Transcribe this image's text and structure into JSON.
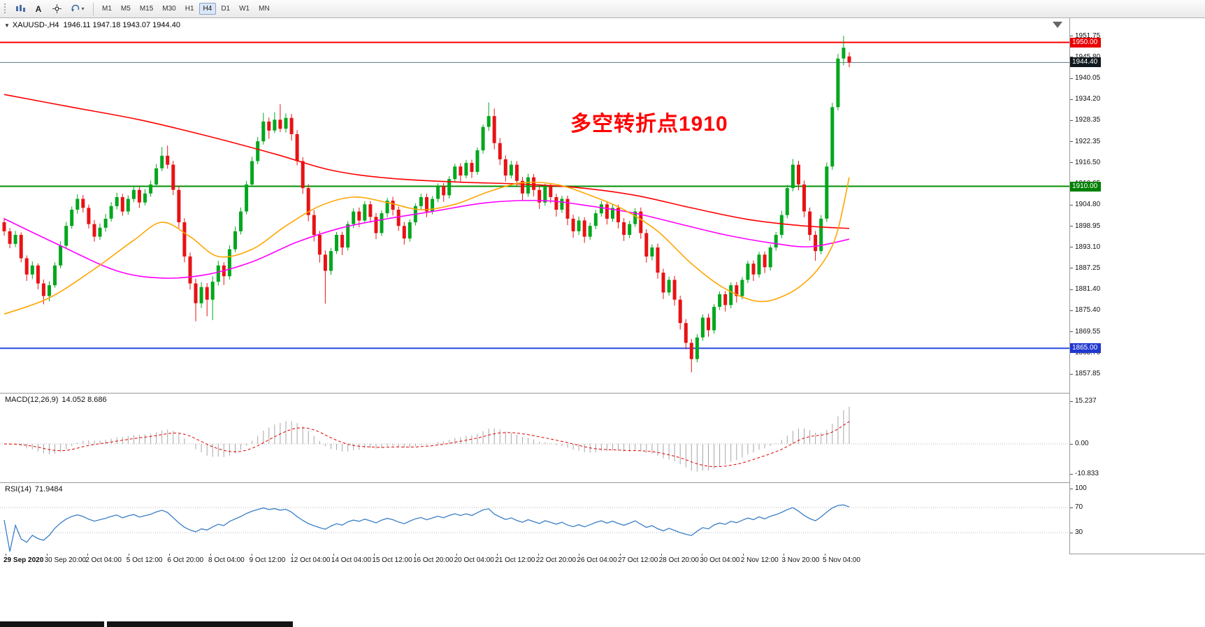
{
  "toolbar": {
    "text_tool_glyph": "A",
    "tools": [
      "pointer-icon",
      "text-tool-icon",
      "crosshair-icon",
      "cycle-icon"
    ],
    "timeframes": [
      "M1",
      "M5",
      "M15",
      "M30",
      "H1",
      "H4",
      "D1",
      "W1",
      "MN"
    ],
    "active_timeframe": "H4"
  },
  "chart": {
    "symbol": "XAUUSD-,H4",
    "ohlc_text": "1946.11 1947.18 1943.07 1944.40",
    "annotation": {
      "text": "多空转折点1910",
      "color": "#FF0000"
    },
    "levels": [
      {
        "value": 1950.0,
        "label": "1950.00",
        "color": "#FF0000",
        "line_color": "#FF0000",
        "width": 2,
        "label_bg": "#E80000"
      },
      {
        "value": 1944.4,
        "label": "1944.40",
        "color": "#5C7A8A",
        "line_color": "#5C7A8A",
        "width": 1,
        "label_bg": "#10191F"
      },
      {
        "value": 1910.0,
        "label": "1910.00",
        "color": "#009000",
        "line_color": "#009000",
        "width": 2,
        "label_bg": "#008000"
      },
      {
        "value": 1865.0,
        "label": "1865.00",
        "color": "#2B4BE0",
        "line_color": "#2B4BE0",
        "width": 2,
        "label_bg": "#2038CF"
      }
    ],
    "price_ticks": [
      "1951.75",
      "1945.80",
      "1940.05",
      "1934.20",
      "1928.35",
      "1922.35",
      "1916.50",
      "1910.65",
      "1904.80",
      "1898.95",
      "1893.10",
      "1887.25",
      "1881.40",
      "1875.40",
      "1869.55",
      "1863.70",
      "1857.85"
    ]
  },
  "chart_data": {
    "type": "candlestick",
    "symbol": "XAUUSD-",
    "timeframe": "H4",
    "colors": {
      "up": "#00A71D",
      "down": "#E81214"
    },
    "candles": [
      [
        1900.0,
        1901.2,
        1896.3,
        1897.5
      ],
      [
        1897.5,
        1898.4,
        1892.8,
        1894.0
      ],
      [
        1894.0,
        1897.6,
        1893.1,
        1896.5
      ],
      [
        1896.5,
        1897.2,
        1888.9,
        1890.0
      ],
      [
        1890.0,
        1890.8,
        1883.7,
        1885.5
      ],
      [
        1885.5,
        1889.1,
        1884.2,
        1888.0
      ],
      [
        1888.0,
        1888.6,
        1881.4,
        1883.0
      ],
      [
        1883.0,
        1884.1,
        1877.2,
        1879.5
      ],
      [
        1879.5,
        1883.6,
        1878.0,
        1882.5
      ],
      [
        1882.5,
        1888.9,
        1881.8,
        1888.0
      ],
      [
        1888.0,
        1894.7,
        1887.2,
        1893.5
      ],
      [
        1893.5,
        1900.1,
        1892.6,
        1899.0
      ],
      [
        1899.0,
        1904.4,
        1898.2,
        1903.5
      ],
      [
        1903.5,
        1907.8,
        1902.4,
        1906.5
      ],
      [
        1906.5,
        1907.6,
        1902.7,
        1904.0
      ],
      [
        1904.0,
        1904.9,
        1898.3,
        1899.5
      ],
      [
        1899.5,
        1900.6,
        1894.6,
        1896.0
      ],
      [
        1896.0,
        1899.7,
        1895.1,
        1898.5
      ],
      [
        1898.5,
        1902.3,
        1897.4,
        1901.0
      ],
      [
        1901.0,
        1905.6,
        1900.2,
        1904.5
      ],
      [
        1904.5,
        1908.2,
        1903.6,
        1907.0
      ],
      [
        1907.0,
        1907.9,
        1901.8,
        1903.0
      ],
      [
        1903.0,
        1907.5,
        1902.1,
        1906.5
      ],
      [
        1906.5,
        1910.1,
        1905.6,
        1909.0
      ],
      [
        1909.0,
        1909.8,
        1904.0,
        1905.5
      ],
      [
        1905.5,
        1909.2,
        1904.7,
        1908.0
      ],
      [
        1908.0,
        1911.6,
        1907.1,
        1910.5
      ],
      [
        1910.5,
        1916.2,
        1909.8,
        1915.0
      ],
      [
        1915.0,
        1920.9,
        1914.2,
        1918.5
      ],
      [
        1918.5,
        1921.3,
        1914.9,
        1916.0
      ],
      [
        1916.0,
        1917.1,
        1907.6,
        1909.0
      ],
      [
        1909.0,
        1910.2,
        1898.4,
        1900.0
      ],
      [
        1900.0,
        1901.1,
        1888.9,
        1890.5
      ],
      [
        1890.5,
        1891.6,
        1881.3,
        1883.0
      ],
      [
        1883.0,
        1884.3,
        1872.5,
        1877.5
      ],
      [
        1877.5,
        1883.4,
        1876.2,
        1882.0
      ],
      [
        1882.0,
        1883.1,
        1873.9,
        1878.5
      ],
      [
        1878.5,
        1885.0,
        1872.8,
        1883.5
      ],
      [
        1883.5,
        1889.3,
        1882.4,
        1888.0
      ],
      [
        1888.0,
        1888.9,
        1882.6,
        1885.0
      ],
      [
        1885.0,
        1893.6,
        1884.1,
        1892.5
      ],
      [
        1892.5,
        1898.8,
        1891.7,
        1897.5
      ],
      [
        1897.5,
        1904.1,
        1896.6,
        1903.0
      ],
      [
        1903.0,
        1911.5,
        1902.2,
        1910.5
      ],
      [
        1910.5,
        1918.2,
        1909.8,
        1917.0
      ],
      [
        1917.0,
        1923.7,
        1916.1,
        1922.5
      ],
      [
        1922.5,
        1930.4,
        1921.6,
        1928.0
      ],
      [
        1928.0,
        1929.1,
        1923.2,
        1925.5
      ],
      [
        1925.5,
        1930.6,
        1924.8,
        1928.5
      ],
      [
        1928.5,
        1932.8,
        1925.1,
        1926.0
      ],
      [
        1926.0,
        1930.2,
        1924.9,
        1929.0
      ],
      [
        1929.0,
        1930.1,
        1922.7,
        1924.5
      ],
      [
        1924.5,
        1925.6,
        1915.8,
        1917.0
      ],
      [
        1917.0,
        1918.1,
        1907.9,
        1909.5
      ],
      [
        1909.5,
        1910.6,
        1900.3,
        1902.0
      ],
      [
        1902.0,
        1903.4,
        1894.7,
        1896.5
      ],
      [
        1896.5,
        1897.6,
        1888.8,
        1891.0
      ],
      [
        1891.0,
        1892.2,
        1877.4,
        1886.5
      ],
      [
        1886.5,
        1892.9,
        1885.4,
        1892.0
      ],
      [
        1892.0,
        1897.3,
        1891.2,
        1896.5
      ],
      [
        1896.5,
        1897.4,
        1890.9,
        1893.0
      ],
      [
        1893.0,
        1900.3,
        1892.2,
        1899.5
      ],
      [
        1899.5,
        1903.9,
        1898.4,
        1903.0
      ],
      [
        1903.0,
        1904.1,
        1898.6,
        1900.5
      ],
      [
        1900.5,
        1905.8,
        1899.7,
        1905.0
      ],
      [
        1905.0,
        1905.9,
        1899.9,
        1901.5
      ],
      [
        1901.5,
        1902.6,
        1895.3,
        1897.0
      ],
      [
        1897.0,
        1903.3,
        1896.2,
        1902.5
      ],
      [
        1902.5,
        1906.8,
        1901.4,
        1906.0
      ],
      [
        1906.0,
        1907.1,
        1901.9,
        1903.5
      ],
      [
        1903.5,
        1904.4,
        1897.6,
        1899.0
      ],
      [
        1899.0,
        1900.1,
        1893.8,
        1895.5
      ],
      [
        1895.5,
        1900.8,
        1894.6,
        1900.0
      ],
      [
        1900.0,
        1905.2,
        1899.1,
        1904.5
      ],
      [
        1904.5,
        1907.9,
        1903.4,
        1907.0
      ],
      [
        1907.0,
        1907.9,
        1901.4,
        1903.0
      ],
      [
        1903.0,
        1907.3,
        1902.2,
        1906.5
      ],
      [
        1906.5,
        1910.8,
        1905.6,
        1910.0
      ],
      [
        1910.0,
        1910.9,
        1905.7,
        1907.5
      ],
      [
        1907.5,
        1912.8,
        1906.6,
        1912.0
      ],
      [
        1912.0,
        1916.3,
        1911.2,
        1915.5
      ],
      [
        1915.5,
        1916.4,
        1911.1,
        1913.0
      ],
      [
        1913.0,
        1917.3,
        1912.2,
        1916.5
      ],
      [
        1916.5,
        1917.4,
        1912.3,
        1914.0
      ],
      [
        1914.0,
        1920.8,
        1913.2,
        1920.0
      ],
      [
        1920.0,
        1927.2,
        1919.1,
        1926.5
      ],
      [
        1926.5,
        1933.3,
        1925.4,
        1929.5
      ],
      [
        1929.5,
        1931.6,
        1920.3,
        1922.0
      ],
      [
        1922.0,
        1923.4,
        1915.9,
        1917.5
      ],
      [
        1917.5,
        1918.6,
        1911.3,
        1913.0
      ],
      [
        1913.0,
        1917.1,
        1912.2,
        1916.0
      ],
      [
        1916.0,
        1917.0,
        1909.8,
        1911.5
      ],
      [
        1911.5,
        1912.6,
        1906.1,
        1908.0
      ],
      [
        1908.0,
        1913.5,
        1907.1,
        1912.5
      ],
      [
        1912.5,
        1913.4,
        1907.2,
        1909.0
      ],
      [
        1909.0,
        1910.1,
        1903.7,
        1905.5
      ],
      [
        1905.5,
        1910.7,
        1904.6,
        1910.0
      ],
      [
        1910.0,
        1910.9,
        1905.3,
        1907.0
      ],
      [
        1907.0,
        1907.9,
        1901.6,
        1903.5
      ],
      [
        1903.5,
        1907.4,
        1902.6,
        1906.5
      ],
      [
        1906.5,
        1907.4,
        1899.2,
        1901.0
      ],
      [
        1901.0,
        1902.1,
        1895.7,
        1897.5
      ],
      [
        1897.5,
        1901.6,
        1896.5,
        1900.5
      ],
      [
        1900.5,
        1901.4,
        1894.3,
        1896.0
      ],
      [
        1896.0,
        1899.9,
        1895.1,
        1899.0
      ],
      [
        1899.0,
        1903.4,
        1898.1,
        1902.5
      ],
      [
        1902.5,
        1905.9,
        1901.6,
        1905.0
      ],
      [
        1905.0,
        1905.9,
        1899.4,
        1901.0
      ],
      [
        1901.0,
        1904.9,
        1900.1,
        1904.0
      ],
      [
        1904.0,
        1904.9,
        1898.3,
        1900.0
      ],
      [
        1900.0,
        1901.1,
        1894.8,
        1896.5
      ],
      [
        1896.5,
        1900.4,
        1895.6,
        1899.5
      ],
      [
        1899.5,
        1903.9,
        1898.7,
        1903.0
      ],
      [
        1903.0,
        1904.1,
        1895.4,
        1897.0
      ],
      [
        1897.0,
        1898.1,
        1888.8,
        1890.5
      ],
      [
        1890.5,
        1893.9,
        1889.4,
        1893.0
      ],
      [
        1893.0,
        1894.1,
        1884.3,
        1886.0
      ],
      [
        1886.0,
        1887.1,
        1878.7,
        1880.5
      ],
      [
        1880.5,
        1884.9,
        1879.6,
        1884.0
      ],
      [
        1884.0,
        1885.1,
        1876.8,
        1878.5
      ],
      [
        1878.5,
        1879.6,
        1870.2,
        1872.0
      ],
      [
        1872.0,
        1873.1,
        1864.7,
        1866.5
      ],
      [
        1866.5,
        1867.6,
        1858.3,
        1862.0
      ],
      [
        1862.0,
        1868.9,
        1861.1,
        1868.0
      ],
      [
        1868.0,
        1874.4,
        1867.1,
        1873.5
      ],
      [
        1873.5,
        1874.6,
        1868.2,
        1870.0
      ],
      [
        1870.0,
        1877.3,
        1869.1,
        1876.5
      ],
      [
        1876.5,
        1880.8,
        1875.6,
        1880.0
      ],
      [
        1880.0,
        1880.9,
        1875.2,
        1877.0
      ],
      [
        1877.0,
        1883.3,
        1876.1,
        1882.5
      ],
      [
        1882.5,
        1883.4,
        1877.7,
        1879.5
      ],
      [
        1879.5,
        1884.8,
        1878.6,
        1884.0
      ],
      [
        1884.0,
        1889.3,
        1883.1,
        1888.5
      ],
      [
        1888.5,
        1889.4,
        1883.7,
        1885.5
      ],
      [
        1885.5,
        1891.8,
        1884.6,
        1891.0
      ],
      [
        1891.0,
        1891.9,
        1885.9,
        1887.5
      ],
      [
        1887.5,
        1893.8,
        1886.6,
        1893.0
      ],
      [
        1893.0,
        1897.3,
        1892.1,
        1896.5
      ],
      [
        1896.5,
        1903.2,
        1895.6,
        1902.0
      ],
      [
        1902.0,
        1910.4,
        1901.1,
        1909.5
      ],
      [
        1909.5,
        1917.6,
        1908.6,
        1916.0
      ],
      [
        1916.0,
        1917.1,
        1908.9,
        1910.5
      ],
      [
        1910.5,
        1911.6,
        1901.4,
        1903.0
      ],
      [
        1903.0,
        1904.1,
        1894.9,
        1896.5
      ],
      [
        1896.5,
        1897.6,
        1889.3,
        1892.0
      ],
      [
        1892.0,
        1902.0,
        1891.1,
        1901.0
      ],
      [
        1901.0,
        1916.6,
        1900.1,
        1915.5
      ],
      [
        1915.5,
        1933.2,
        1914.6,
        1932.0
      ],
      [
        1932.0,
        1946.8,
        1931.1,
        1945.5
      ],
      [
        1945.5,
        1951.8,
        1943.6,
        1948.5
      ],
      [
        1946.1,
        1947.2,
        1943.1,
        1944.4
      ]
    ],
    "overlays": [
      {
        "name": "ma-slow-red",
        "color": "#FF0000",
        "points": [
          [
            0,
            1935.5
          ],
          [
            12,
            1932.0
          ],
          [
            24,
            1928.5
          ],
          [
            36,
            1924.0
          ],
          [
            48,
            1919.0
          ],
          [
            58,
            1914.5
          ],
          [
            68,
            1912.3
          ],
          [
            80,
            1911.2
          ],
          [
            92,
            1910.6
          ],
          [
            102,
            1909.6
          ],
          [
            112,
            1907.5
          ],
          [
            122,
            1904.0
          ],
          [
            132,
            1900.8
          ],
          [
            142,
            1899.0
          ],
          [
            150,
            1898.3
          ]
        ]
      },
      {
        "name": "ma-mid-magenta",
        "color": "#FF00FF",
        "points": [
          [
            0,
            1901.0
          ],
          [
            10,
            1893.5
          ],
          [
            20,
            1886.5
          ],
          [
            28,
            1884.5
          ],
          [
            36,
            1885.5
          ],
          [
            44,
            1889.0
          ],
          [
            52,
            1894.5
          ],
          [
            60,
            1898.5
          ],
          [
            68,
            1901.0
          ],
          [
            76,
            1903.0
          ],
          [
            86,
            1905.5
          ],
          [
            96,
            1906.0
          ],
          [
            104,
            1904.5
          ],
          [
            112,
            1902.5
          ],
          [
            120,
            1899.5
          ],
          [
            128,
            1896.5
          ],
          [
            136,
            1894.3
          ],
          [
            143,
            1893.2
          ],
          [
            150,
            1895.3
          ]
        ]
      },
      {
        "name": "ma-fast-orange",
        "color": "#FFA500",
        "points": [
          [
            0,
            1874.5
          ],
          [
            8,
            1879.0
          ],
          [
            16,
            1887.0
          ],
          [
            23,
            1895.0
          ],
          [
            28,
            1900.0
          ],
          [
            33,
            1896.0
          ],
          [
            38,
            1890.5
          ],
          [
            44,
            1892.5
          ],
          [
            50,
            1899.0
          ],
          [
            56,
            1904.5
          ],
          [
            62,
            1907.0
          ],
          [
            68,
            1905.5
          ],
          [
            74,
            1903.5
          ],
          [
            80,
            1905.0
          ],
          [
            86,
            1908.5
          ],
          [
            92,
            1911.0
          ],
          [
            98,
            1910.5
          ],
          [
            104,
            1907.5
          ],
          [
            110,
            1903.5
          ],
          [
            116,
            1897.5
          ],
          [
            122,
            1888.5
          ],
          [
            128,
            1881.5
          ],
          [
            134,
            1878.0
          ],
          [
            139,
            1880.0
          ],
          [
            143,
            1884.5
          ],
          [
            146,
            1890.5
          ],
          [
            148,
            1898.0
          ],
          [
            150,
            1912.5
          ]
        ]
      }
    ],
    "macd": {
      "title": "MACD(12,26,9)",
      "values_text": "14.052 8.686",
      "params": [
        12,
        26,
        9
      ],
      "axis": [
        "15.237",
        "0.00",
        "-10.833"
      ],
      "histogram_color": "#A6A6A6",
      "signal_color": "#E00000"
    },
    "rsi": {
      "title": "RSI(14)",
      "value_text": "71.9484",
      "period": 14,
      "axis": [
        "100",
        "70",
        "30"
      ],
      "levels": [
        70,
        30
      ],
      "line_color": "#3A7EC6"
    }
  },
  "time_axis": {
    "labels": [
      "29 Sep 2020",
      "30 Sep 20:00",
      "2 Oct 04:00",
      "5 Oct 12:00",
      "6 Oct 20:00",
      "8 Oct 04:00",
      "9 Oct 12:00",
      "12 Oct 04:00",
      "14 Oct 04:00",
      "15 Oct 12:00",
      "16 Oct 20:00",
      "20 Oct 04:00",
      "21 Oct 12:00",
      "22 Oct 20:00",
      "26 Oct 04:00",
      "27 Oct 12:00",
      "28 Oct 20:00",
      "30 Oct 04:00",
      "2 Nov 12:00",
      "3 Nov 20:00",
      "5 Nov 04:00"
    ]
  }
}
